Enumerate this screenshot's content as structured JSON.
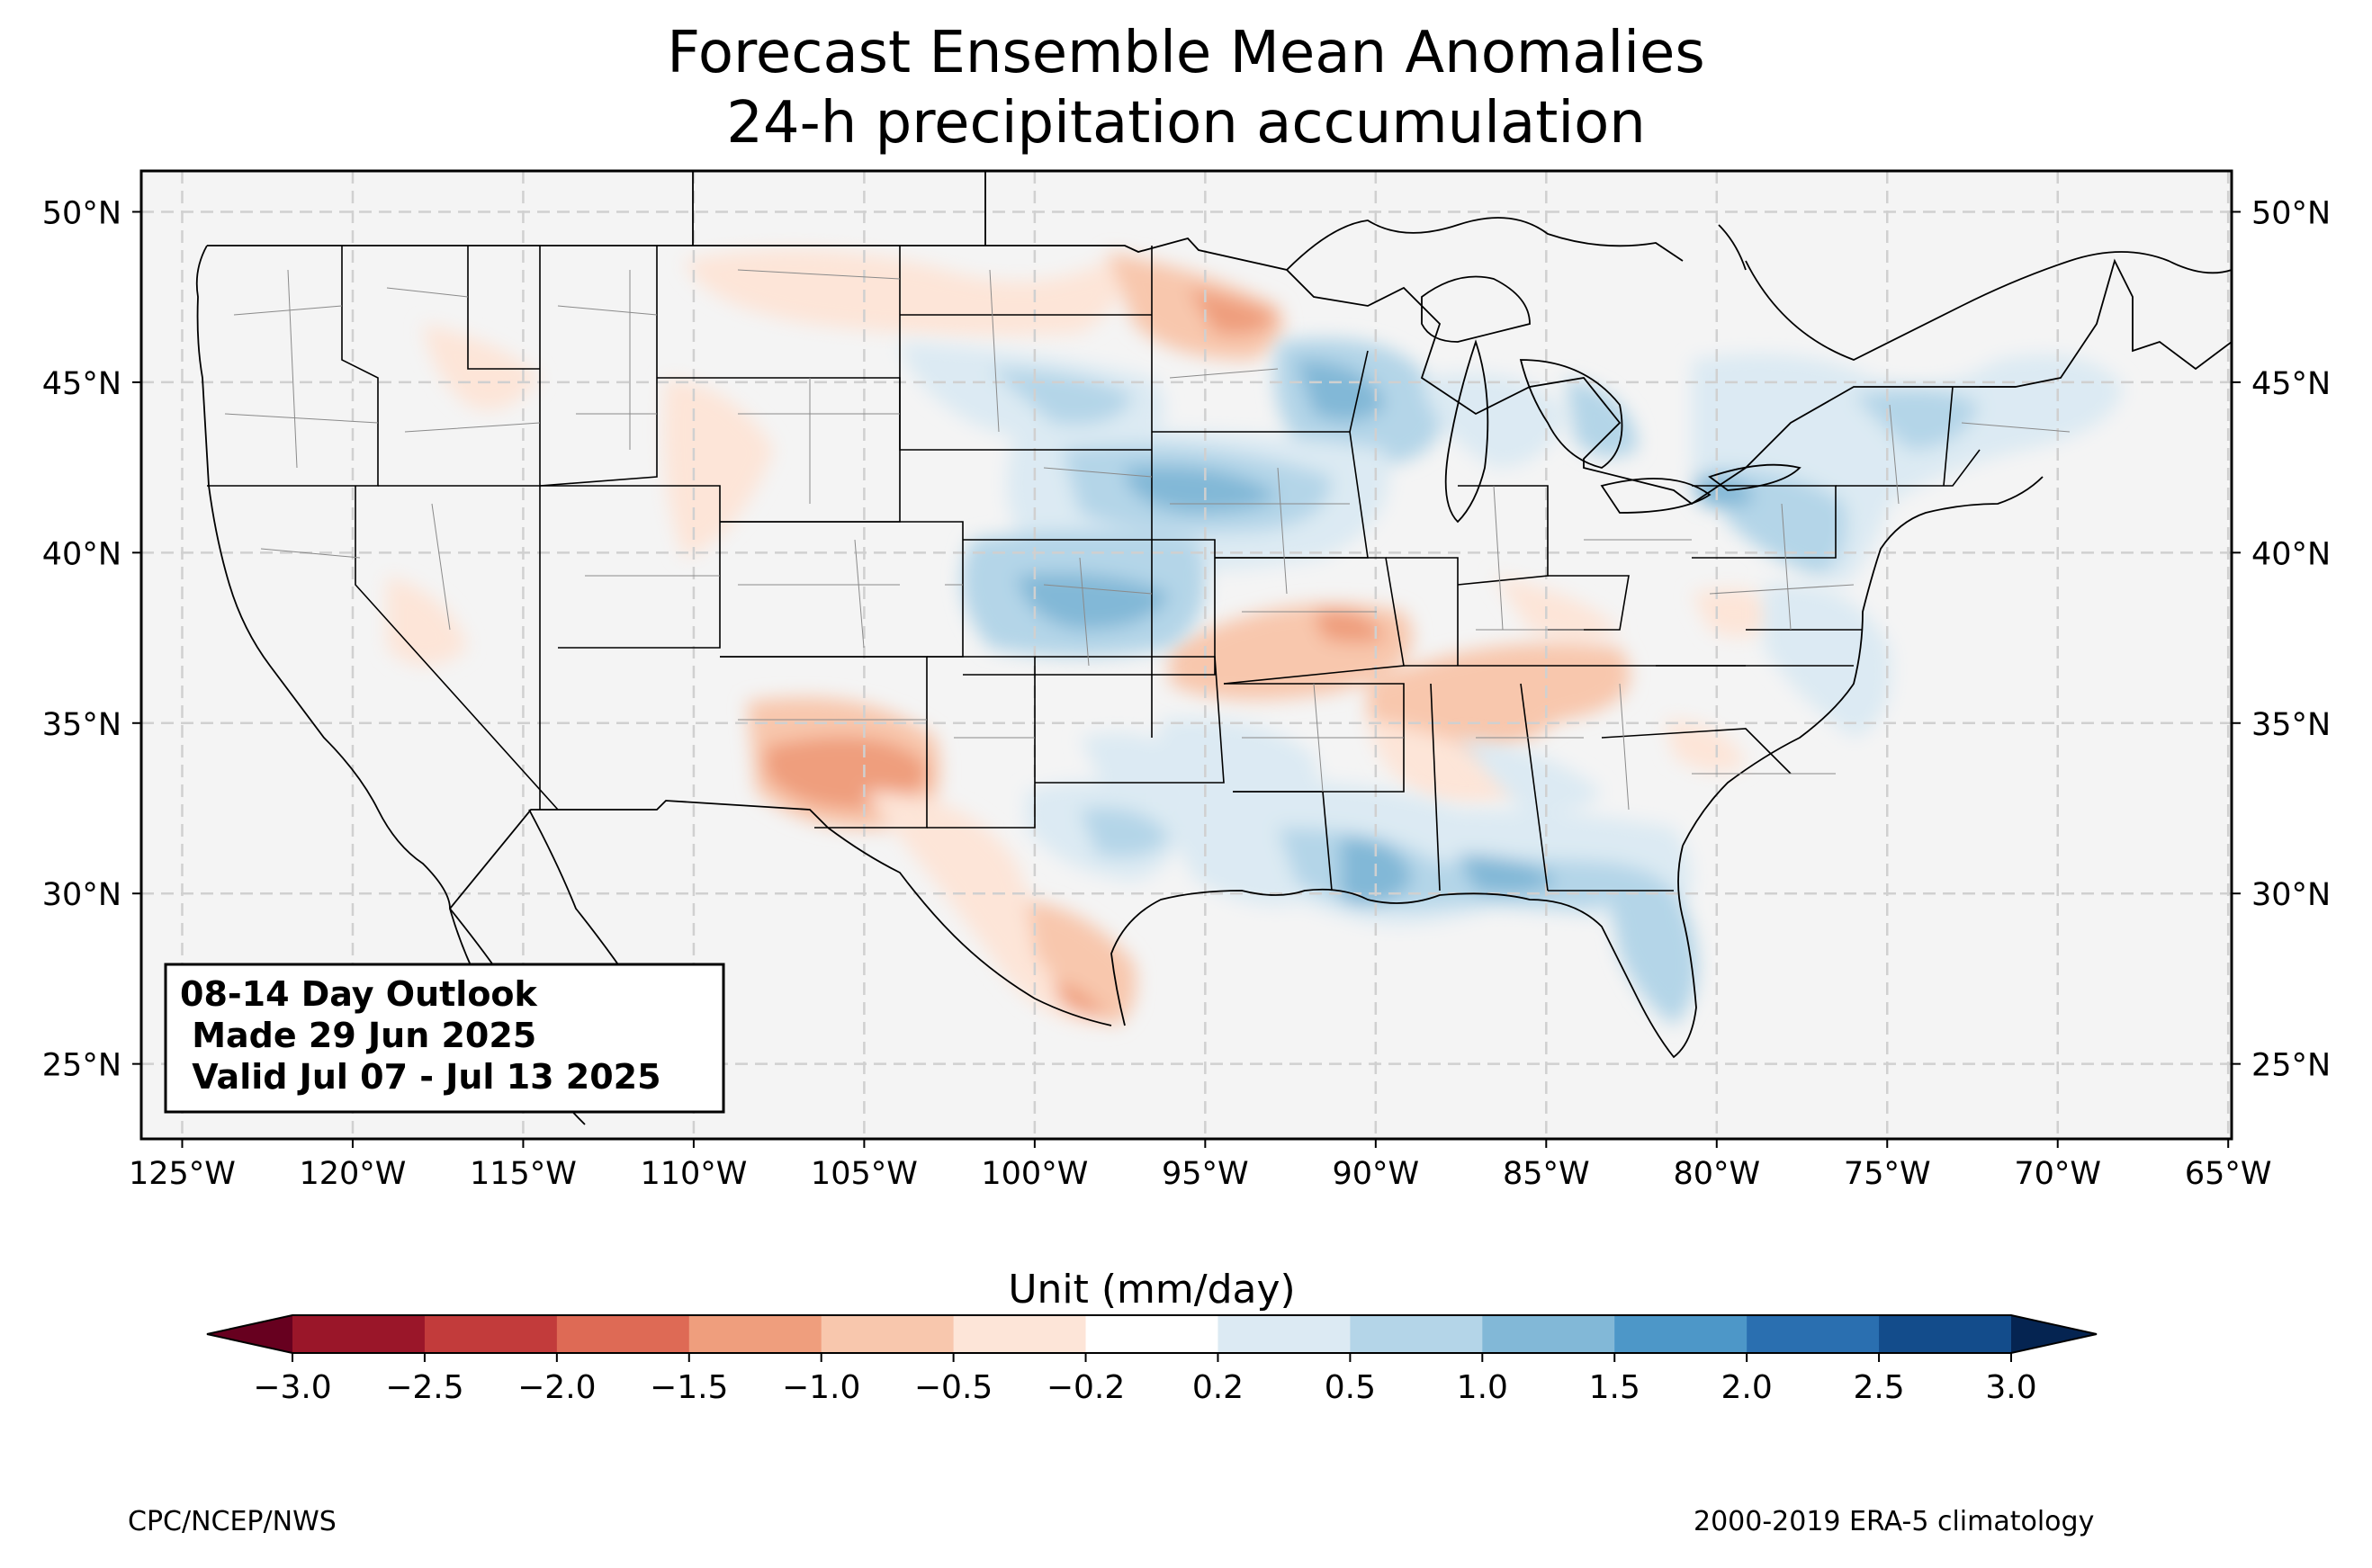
{
  "title": {
    "line1": "Forecast Ensemble Mean Anomalies",
    "line2": "24-h precipitation accumulation"
  },
  "map": {
    "lat_labels": [
      "50°N",
      "45°N",
      "40°N",
      "35°N",
      "30°N",
      "25°N"
    ],
    "lat_values": [
      50,
      45,
      40,
      35,
      30,
      25
    ],
    "lon_labels": [
      "125°W",
      "120°W",
      "115°W",
      "110°W",
      "105°W",
      "100°W",
      "95°W",
      "90°W",
      "85°W",
      "80°W",
      "75°W",
      "70°W",
      "65°W"
    ],
    "lon_values": [
      -125,
      -120,
      -115,
      -110,
      -105,
      -100,
      -95,
      -90,
      -85,
      -80,
      -75,
      -70,
      -65
    ],
    "extent": {
      "lon_min": -126.2,
      "lon_max": -64.9,
      "lat_min": 22.8,
      "lat_max": 51.2
    },
    "gridlines": true
  },
  "infobox": {
    "line1": "08-14 Day Outlook",
    "line2": " Made 29 Jun 2025",
    "line3": " Valid Jul 07 - Jul 13 2025"
  },
  "colorbar": {
    "label": "Unit (mm/day)",
    "ticks": [
      "−3.0",
      "−2.5",
      "−2.0",
      "−1.5",
      "−1.0",
      "−0.5",
      "−0.2",
      "0.2",
      "0.5",
      "1.0",
      "1.5",
      "2.0",
      "2.5",
      "3.0"
    ],
    "colors": [
      "#9a1629",
      "#c23b3b",
      "#de6a55",
      "#ef9e7d",
      "#f8c7ad",
      "#fde5d8",
      "#ffffff",
      "#dceaf3",
      "#b4d5e8",
      "#82b8d7",
      "#4d97c8",
      "#2a6fb0",
      "#134c8b"
    ],
    "extend_low_color": "#67001f",
    "extend_high_color": "#052451"
  },
  "footer": {
    "left": "CPC/NCEP/NWS",
    "right": "2000-2019 ERA-5 climatology"
  }
}
